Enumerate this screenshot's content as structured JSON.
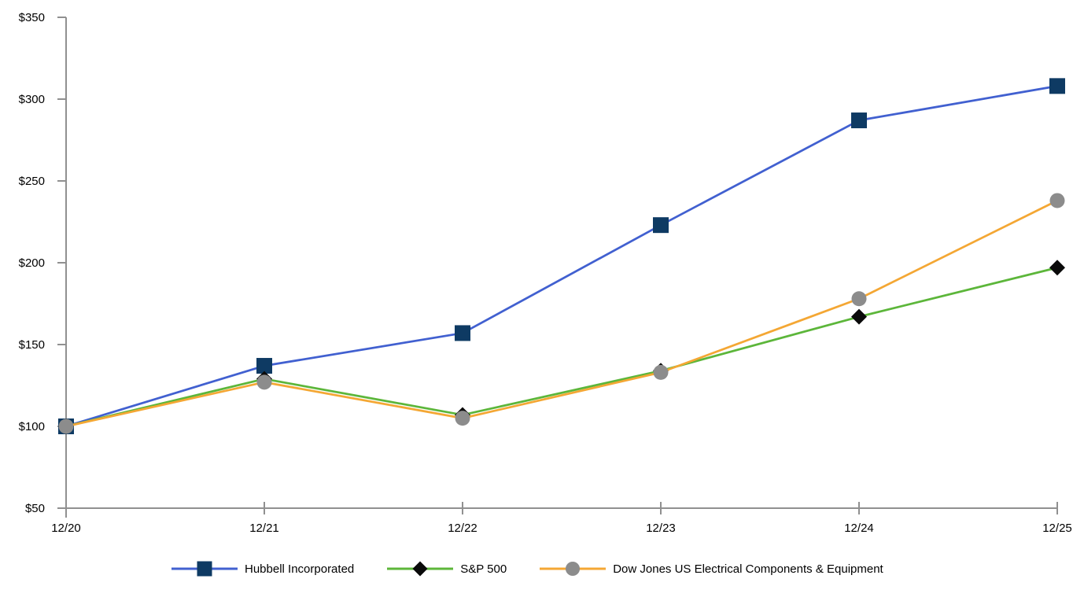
{
  "chart_data": {
    "type": "line",
    "title": "",
    "xlabel": "",
    "ylabel": "",
    "categories": [
      "12/20",
      "12/21",
      "12/22",
      "12/23",
      "12/24",
      "12/25"
    ],
    "series": [
      {
        "name": "Hubbell Incorporated",
        "line_color": "#4160d0",
        "marker": "square",
        "marker_color": "#0e3a63",
        "values": [
          100,
          137,
          157,
          223,
          287,
          308
        ]
      },
      {
        "name": "S&P 500",
        "line_color": "#5cb63a",
        "marker": "diamond",
        "marker_color": "#0a0a0a",
        "values": [
          100,
          129,
          107,
          134,
          167,
          197
        ]
      },
      {
        "name": "Dow Jones US Electrical Components & Equipment",
        "line_color": "#f4a734",
        "marker": "circle",
        "marker_color": "#8c8c8c",
        "values": [
          100,
          127,
          105,
          133,
          178,
          238
        ]
      }
    ],
    "ylim": [
      50,
      350
    ],
    "ytick_step": 50,
    "ytick_labels": [
      "$50",
      "$100",
      "$150",
      "$200",
      "$250",
      "$300",
      "$350"
    ],
    "axis_color": "#909090",
    "text_color": "#000000",
    "grid": false,
    "legend_position": "bottom"
  }
}
